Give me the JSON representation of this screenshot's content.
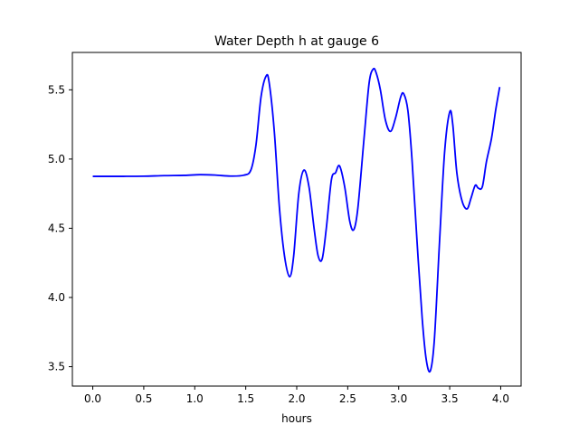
{
  "chart_data": {
    "type": "line",
    "title": "Water Depth h at gauge 6",
    "xlabel": "hours",
    "ylabel": "",
    "xlim": [
      -0.2,
      4.2
    ],
    "ylim": [
      3.36,
      5.77
    ],
    "x_ticks": [
      0.0,
      0.5,
      1.0,
      1.5,
      2.0,
      2.5,
      3.0,
      3.5,
      4.0
    ],
    "x_tick_labels": [
      "0.0",
      "0.5",
      "1.0",
      "1.5",
      "2.0",
      "2.5",
      "3.0",
      "3.5",
      "4.0"
    ],
    "y_ticks": [
      3.5,
      4.0,
      4.5,
      5.0,
      5.5
    ],
    "y_tick_labels": [
      "3.5",
      "4.0",
      "4.5",
      "5.0",
      "5.5"
    ],
    "grid": false,
    "legend": "none",
    "series": [
      {
        "color": "#0000ff",
        "points": [
          [
            0.0,
            4.875
          ],
          [
            0.3,
            4.875
          ],
          [
            0.5,
            4.876
          ],
          [
            0.7,
            4.88
          ],
          [
            0.9,
            4.882
          ],
          [
            1.05,
            4.887
          ],
          [
            1.2,
            4.884
          ],
          [
            1.35,
            4.877
          ],
          [
            1.48,
            4.883
          ],
          [
            1.55,
            4.92
          ],
          [
            1.6,
            5.1
          ],
          [
            1.65,
            5.45
          ],
          [
            1.7,
            5.6
          ],
          [
            1.73,
            5.55
          ],
          [
            1.78,
            5.2
          ],
          [
            1.83,
            4.65
          ],
          [
            1.88,
            4.3
          ],
          [
            1.93,
            4.15
          ],
          [
            1.97,
            4.3
          ],
          [
            2.02,
            4.75
          ],
          [
            2.07,
            4.92
          ],
          [
            2.12,
            4.8
          ],
          [
            2.17,
            4.5
          ],
          [
            2.21,
            4.3
          ],
          [
            2.25,
            4.28
          ],
          [
            2.29,
            4.5
          ],
          [
            2.34,
            4.85
          ],
          [
            2.38,
            4.9
          ],
          [
            2.42,
            4.95
          ],
          [
            2.47,
            4.8
          ],
          [
            2.52,
            4.55
          ],
          [
            2.56,
            4.49
          ],
          [
            2.6,
            4.65
          ],
          [
            2.66,
            5.15
          ],
          [
            2.71,
            5.55
          ],
          [
            2.75,
            5.65
          ],
          [
            2.78,
            5.62
          ],
          [
            2.82,
            5.5
          ],
          [
            2.87,
            5.28
          ],
          [
            2.92,
            5.2
          ],
          [
            2.97,
            5.3
          ],
          [
            3.02,
            5.45
          ],
          [
            3.05,
            5.47
          ],
          [
            3.09,
            5.35
          ],
          [
            3.13,
            5.0
          ],
          [
            3.18,
            4.4
          ],
          [
            3.23,
            3.85
          ],
          [
            3.27,
            3.55
          ],
          [
            3.31,
            3.47
          ],
          [
            3.35,
            3.7
          ],
          [
            3.4,
            4.4
          ],
          [
            3.45,
            5.05
          ],
          [
            3.5,
            5.34
          ],
          [
            3.53,
            5.25
          ],
          [
            3.57,
            4.9
          ],
          [
            3.62,
            4.7
          ],
          [
            3.67,
            4.64
          ],
          [
            3.71,
            4.72
          ],
          [
            3.75,
            4.81
          ],
          [
            3.78,
            4.79
          ],
          [
            3.82,
            4.8
          ],
          [
            3.86,
            4.98
          ],
          [
            3.91,
            5.15
          ],
          [
            3.95,
            5.35
          ],
          [
            3.99,
            5.52
          ]
        ]
      }
    ]
  }
}
